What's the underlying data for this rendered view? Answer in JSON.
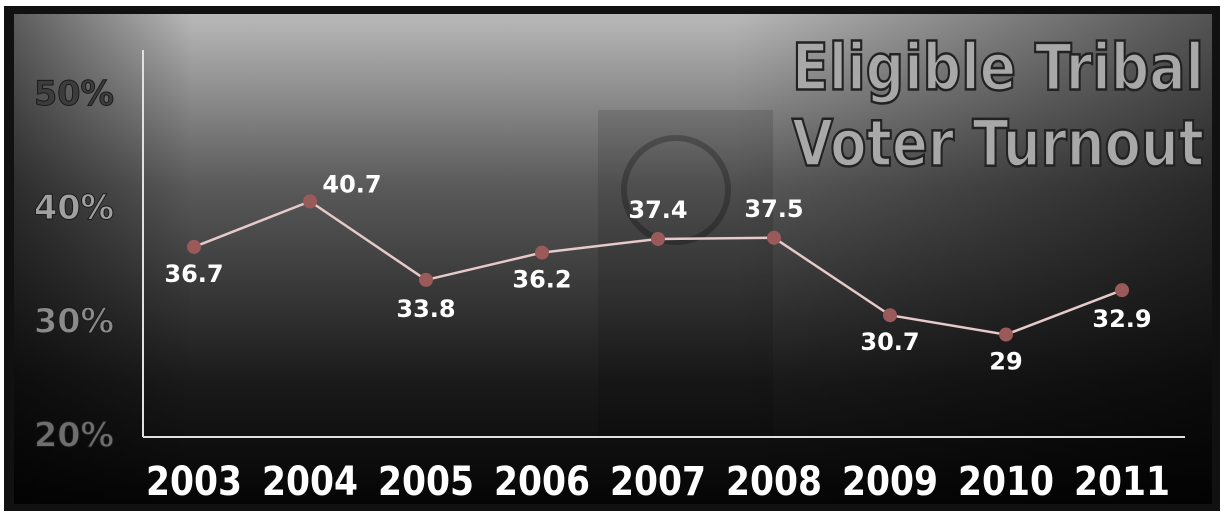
{
  "chart_data": {
    "type": "line",
    "title": [
      "Eligible Tribal",
      "Voter Turnout"
    ],
    "categories": [
      "2003",
      "2004",
      "2005",
      "2006",
      "2007",
      "2008",
      "2009",
      "2010",
      "2011"
    ],
    "values": [
      36.7,
      40.7,
      33.8,
      36.2,
      37.4,
      37.5,
      30.7,
      29,
      32.9
    ],
    "line_color": "#e6c9c9",
    "marker_color": "#9a5a5a",
    "ylim": [
      20,
      54
    ],
    "yticks": [
      {
        "value": 20,
        "label": "20%"
      },
      {
        "value": 30,
        "label": "30%"
      },
      {
        "value": 40,
        "label": "40%"
      },
      {
        "value": 50,
        "label": "50%"
      }
    ]
  }
}
